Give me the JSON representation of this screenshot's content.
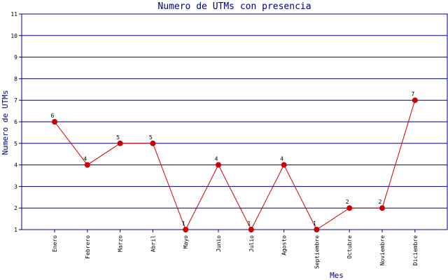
{
  "chart_data": {
    "type": "line",
    "title": "Numero de UTMs con presencia",
    "xlabel": "Mes",
    "ylabel": "Numero de UTMs",
    "categories": [
      "Enero",
      "Febrero",
      "Marzo",
      "Abril",
      "Mayo",
      "Junio",
      "Julio",
      "Agosto",
      "Septiembre",
      "Octubre",
      "Noviembre",
      "Diciembre"
    ],
    "values": [
      6,
      4,
      5,
      5,
      1,
      4,
      1,
      4,
      1,
      2,
      2,
      7
    ],
    "ylim": [
      1,
      11
    ],
    "yticks": [
      1,
      2,
      3,
      4,
      5,
      6,
      7,
      8,
      9,
      10,
      11
    ],
    "grid": true,
    "legend": "none",
    "colors": {
      "line": "#cc0000",
      "marker": "#cc0000",
      "grid": "#000080",
      "axis": "#000080",
      "title": "#000080"
    }
  }
}
